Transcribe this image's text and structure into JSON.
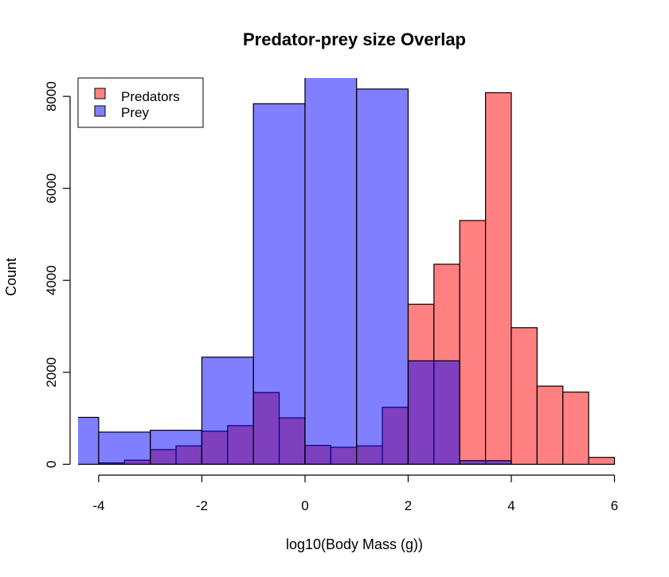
{
  "chart_data": {
    "type": "bar",
    "title": "Predator-prey size Overlap",
    "xlabel": "log10(Body Mass (g))",
    "ylabel": "Count",
    "xlim": [
      -4.4,
      6.1
    ],
    "ylim": [
      -80,
      8400
    ],
    "x_ticks": [
      -4,
      -2,
      0,
      2,
      4,
      6
    ],
    "x_tick_labels": [
      "-4",
      "-2",
      "0",
      "2",
      "4",
      "6"
    ],
    "y_ticks": [
      0,
      2000,
      4000,
      6000,
      8000
    ],
    "y_tick_labels": [
      "0",
      "2000",
      "4000",
      "6000",
      "8000"
    ],
    "legend": {
      "placement": "top-left",
      "entries": [
        {
          "label": "Predators",
          "color": "#ff8080"
        },
        {
          "label": "Prey",
          "color": "#8080ff"
        }
      ]
    },
    "series": [
      {
        "name": "Predators",
        "color": "#ff8080",
        "opacity": 1,
        "bins": [
          {
            "x0": -4.0,
            "x1": -3.5,
            "count": 30
          },
          {
            "x0": -3.5,
            "x1": -3.0,
            "count": 90
          },
          {
            "x0": -3.0,
            "x1": -2.5,
            "count": 320
          },
          {
            "x0": -2.5,
            "x1": -2.0,
            "count": 400
          },
          {
            "x0": -2.0,
            "x1": -1.5,
            "count": 720
          },
          {
            "x0": -1.5,
            "x1": -1.0,
            "count": 840
          },
          {
            "x0": -1.0,
            "x1": -0.5,
            "count": 1560
          },
          {
            "x0": -0.5,
            "x1": 0.0,
            "count": 1010
          },
          {
            "x0": 0.0,
            "x1": 0.5,
            "count": 410
          },
          {
            "x0": 0.5,
            "x1": 1.0,
            "count": 370
          },
          {
            "x0": 1.0,
            "x1": 1.5,
            "count": 400
          },
          {
            "x0": 1.5,
            "x1": 2.0,
            "count": 1240
          },
          {
            "x0": 2.0,
            "x1": 2.5,
            "count": 3480
          },
          {
            "x0": 2.5,
            "x1": 3.0,
            "count": 4350
          },
          {
            "x0": 3.0,
            "x1": 3.5,
            "count": 5300
          },
          {
            "x0": 3.5,
            "x1": 4.0,
            "count": 8080
          },
          {
            "x0": 4.0,
            "x1": 4.5,
            "count": 2970
          },
          {
            "x0": 4.5,
            "x1": 5.0,
            "count": 1700
          },
          {
            "x0": 5.0,
            "x1": 5.5,
            "count": 1570
          },
          {
            "x0": 5.5,
            "x1": 6.0,
            "count": 150
          }
        ]
      },
      {
        "name": "Prey",
        "color": "#0000ff",
        "opacity": 0.5,
        "bins": [
          {
            "x0": -5.0,
            "x1": -4.0,
            "count": 1020
          },
          {
            "x0": -4.0,
            "x1": -3.0,
            "count": 700
          },
          {
            "x0": -3.0,
            "x1": -2.0,
            "count": 740
          },
          {
            "x0": -2.0,
            "x1": -1.0,
            "count": 2330
          },
          {
            "x0": -1.0,
            "x1": 0.0,
            "count": 7840
          },
          {
            "x0": 0.0,
            "x1": 1.0,
            "count": 8440
          },
          {
            "x0": 1.0,
            "x1": 2.0,
            "count": 8160
          },
          {
            "x0": 2.0,
            "x1": 3.0,
            "count": 2250
          },
          {
            "x0": 3.0,
            "x1": 4.0,
            "count": 80
          }
        ]
      }
    ]
  }
}
